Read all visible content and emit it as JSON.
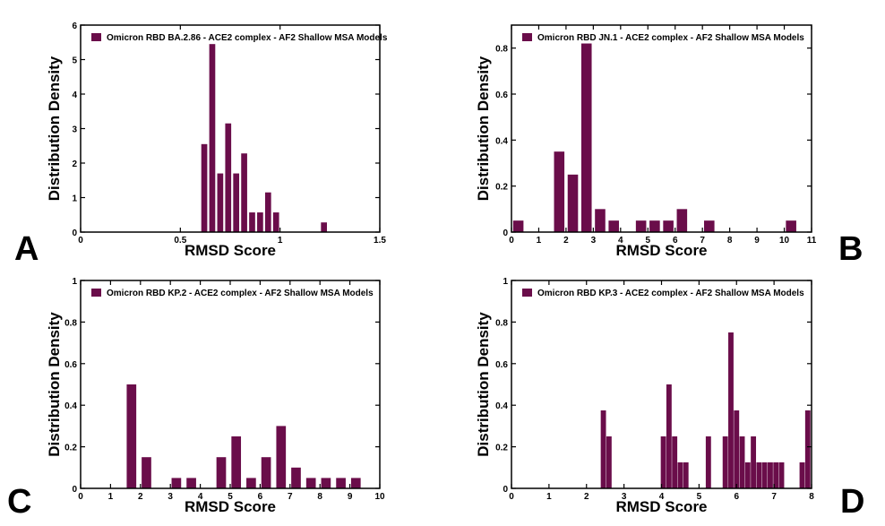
{
  "bar_color": "#6a0d4a",
  "chart_data": [
    {
      "type": "bar",
      "panel_label": "A",
      "legend": "Omicron RBD BA.2.86 - ACE2 complex - AF2 Shallow MSA Models",
      "xlabel": "RMSD Score",
      "ylabel": "Distribution Density",
      "xlim": [
        0,
        1.5
      ],
      "ylim": [
        0,
        6
      ],
      "xticks": [
        0,
        0.5,
        1,
        1.5
      ],
      "yticks": [
        0,
        1,
        2,
        3,
        4,
        5,
        6
      ],
      "bar_width": 0.03,
      "x": [
        0.62,
        0.66,
        0.7,
        0.74,
        0.78,
        0.82,
        0.86,
        0.9,
        0.94,
        0.98,
        1.02,
        1.22
      ],
      "values": [
        2.55,
        5.45,
        1.7,
        3.15,
        1.7,
        2.28,
        0.57,
        0.57,
        1.15,
        0.57,
        0.0,
        0.28
      ]
    },
    {
      "type": "bar",
      "panel_label": "B",
      "legend": "Omicron RBD JN.1 - ACE2 complex - AF2 Shallow MSA Models",
      "xlabel": "RMSD Score",
      "ylabel": "Distribution Density",
      "xlim": [
        0,
        11
      ],
      "ylim": [
        0,
        0.9
      ],
      "xticks": [
        0,
        1,
        2,
        3,
        4,
        5,
        6,
        7,
        8,
        9,
        10,
        11
      ],
      "yticks": [
        0,
        0.2,
        0.4,
        0.6,
        0.8
      ],
      "bar_width": 0.38,
      "x": [
        0.25,
        1.75,
        2.25,
        2.75,
        3.25,
        3.75,
        4.75,
        5.25,
        5.75,
        6.25,
        7.25,
        10.25
      ],
      "values": [
        0.05,
        0.35,
        0.25,
        0.82,
        0.1,
        0.05,
        0.05,
        0.05,
        0.05,
        0.1,
        0.05,
        0.05
      ]
    },
    {
      "type": "bar",
      "panel_label": "C",
      "legend": "Omicron RBD KP.2 - ACE2 complex - AF2 Shallow MSA Models",
      "xlabel": "RMSD Score",
      "ylabel": "Distribution Density",
      "xlim": [
        0,
        10
      ],
      "ylim": [
        0,
        1
      ],
      "xticks": [
        0,
        1,
        2,
        3,
        4,
        5,
        6,
        7,
        8,
        9,
        10
      ],
      "yticks": [
        0,
        0.2,
        0.4,
        0.6,
        0.8,
        1
      ],
      "bar_width": 0.32,
      "x": [
        1.7,
        2.2,
        3.2,
        3.7,
        4.7,
        5.2,
        5.7,
        6.2,
        6.7,
        7.2,
        7.7,
        8.2,
        8.7,
        9.2
      ],
      "values": [
        0.5,
        0.15,
        0.05,
        0.05,
        0.15,
        0.25,
        0.05,
        0.15,
        0.3,
        0.1,
        0.05,
        0.05,
        0.05,
        0.05
      ]
    },
    {
      "type": "bar",
      "panel_label": "D",
      "legend": "Omicron RBD KP.3 - ACE2 complex - AF2 Shallow MSA Models",
      "xlabel": "RMSD Score",
      "ylabel": "Distribution Density",
      "xlim": [
        0,
        8
      ],
      "ylim": [
        0,
        1
      ],
      "xticks": [
        0,
        1,
        2,
        3,
        4,
        5,
        6,
        7,
        8
      ],
      "yticks": [
        0,
        0.2,
        0.4,
        0.6,
        0.8,
        1
      ],
      "bar_width": 0.14,
      "x": [
        2.45,
        2.6,
        4.05,
        4.2,
        4.35,
        4.5,
        4.65,
        5.25,
        5.7,
        5.85,
        6.0,
        6.15,
        6.3,
        6.45,
        6.6,
        6.75,
        6.9,
        7.05,
        7.2,
        7.75,
        7.9
      ],
      "values": [
        0.375,
        0.25,
        0.25,
        0.5,
        0.25,
        0.125,
        0.125,
        0.25,
        0.25,
        0.75,
        0.375,
        0.25,
        0.125,
        0.25,
        0.125,
        0.125,
        0.125,
        0.125,
        0.125,
        0.125,
        0.375
      ]
    }
  ]
}
